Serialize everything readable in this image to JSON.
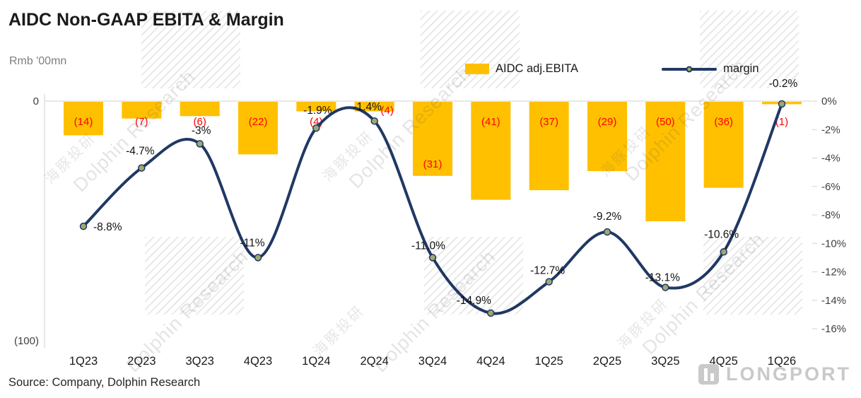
{
  "title": "AIDC Non-GAAP EBITA & Margin",
  "axis_unit": "Rmb '00mn",
  "source": "Source: Company, Dolphin Research",
  "watermark": {
    "en": "Dolphin Research",
    "zh": "海豚投研"
  },
  "logo_text": "LONGPORT",
  "legend": {
    "bar_label": "AIDC adj.EBITA",
    "line_label": "margin"
  },
  "colors": {
    "bar": "#FFC000",
    "line": "#203864",
    "marker": "#9FA96F",
    "bar_label": "#FF0000",
    "grid": "#D9D9D9"
  },
  "chart_data": {
    "type": "bar+line combo",
    "categories": [
      "1Q23",
      "2Q23",
      "3Q23",
      "4Q23",
      "1Q24",
      "2Q24",
      "3Q24",
      "4Q24",
      "1Q25",
      "2Q25",
      "3Q25",
      "4Q25",
      "1Q26"
    ],
    "series": [
      {
        "name": "AIDC adj.EBITA",
        "type": "bar",
        "axis": "left",
        "values": [
          -14,
          -7,
          -6,
          -22,
          -4,
          -4,
          -31,
          -41,
          -37,
          -29,
          -50,
          -36,
          -1
        ],
        "data_labels": [
          "(14)",
          "(7)",
          "(6)",
          "(22)",
          "(4)",
          "(4)",
          "(31)",
          "(41)",
          "(37)",
          "(29)",
          "(50)",
          "(36)",
          "(1)"
        ]
      },
      {
        "name": "margin",
        "type": "line",
        "axis": "right",
        "smooth": true,
        "values": [
          -8.8,
          -4.7,
          -3,
          -11,
          -1.9,
          -1.4,
          -11.0,
          -14.9,
          -12.7,
          -9.2,
          -13.1,
          -10.6,
          -0.2
        ],
        "data_labels": [
          "-8.8%",
          "-4.7%",
          "-3%",
          "-11%",
          "-1.9%",
          "-1.4%",
          "-11.0%",
          "-14.9%",
          "-12.7%",
          "-9.2%",
          "-13.1%",
          "-10.6%",
          "-0.2%"
        ]
      }
    ],
    "left_axis": {
      "title": "Rmb '00mn",
      "tick_labels": [
        "0",
        "(100)"
      ],
      "range": [
        0,
        -100
      ]
    },
    "right_axis": {
      "tick_labels": [
        "0%",
        "-2%",
        "-4%",
        "-6%",
        "-8%",
        "-10%",
        "-12%",
        "-14%",
        "-16%"
      ],
      "range": [
        0,
        -16
      ]
    },
    "legend_position": "top",
    "grid": "zero-line-only"
  }
}
